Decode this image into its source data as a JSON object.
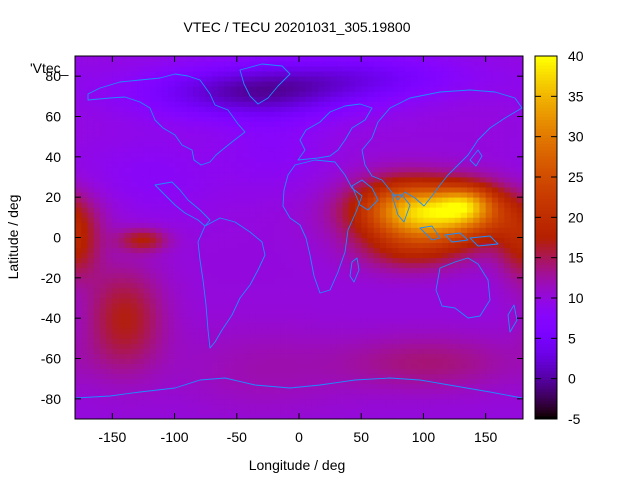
{
  "chart_data": {
    "type": "heatmap",
    "title": "VTEC / TECU 20201031_305.19800",
    "xlabel": "Longitude / deg",
    "ylabel": "Latitude / deg",
    "key_label": "'Vtec_",
    "xlim": [
      -180,
      180
    ],
    "ylim": [
      -90,
      90
    ],
    "xticks": [
      -150,
      -100,
      -50,
      0,
      50,
      100,
      150
    ],
    "yticks": [
      -80,
      -60,
      -40,
      -20,
      0,
      20,
      40,
      60,
      80
    ],
    "colorbar": {
      "min": -5,
      "max": 40,
      "ticks": [
        -5,
        0,
        5,
        10,
        15,
        20,
        25,
        30,
        35,
        40
      ]
    },
    "field": {
      "base": 10,
      "components": [
        {
          "lon": 110,
          "lat": 12,
          "amp": 26,
          "sx": 40,
          "sy": 10
        },
        {
          "lon": 135,
          "lat": 17,
          "amp": 9,
          "sx": 15,
          "sy": 6
        },
        {
          "lon": 80,
          "lat": 18,
          "amp": 5,
          "sx": 25,
          "sy": 10
        },
        {
          "lon": 90,
          "lat": -6,
          "amp": 6,
          "sx": 30,
          "sy": 8
        },
        {
          "lon": -180,
          "lat": -4,
          "amp": 7,
          "sx": 14,
          "sy": 12
        },
        {
          "lon": -125,
          "lat": -1,
          "amp": 7,
          "sx": 14,
          "sy": 4
        },
        {
          "lon": -140,
          "lat": -40,
          "amp": 7,
          "sx": 22,
          "sy": 18
        },
        {
          "lon": 105,
          "lat": -62,
          "amp": 4,
          "sx": 50,
          "sy": 10
        },
        {
          "lon": -30,
          "lat": -65,
          "amp": 2,
          "sx": 50,
          "sy": 15
        },
        {
          "lon": -40,
          "lat": 72,
          "amp": -9,
          "sx": 60,
          "sy": 9
        },
        {
          "lon": 50,
          "lat": 80,
          "amp": -5,
          "sx": 60,
          "sy": 8
        },
        {
          "lon": -120,
          "lat": 30,
          "amp": -2,
          "sx": 40,
          "sy": 15
        },
        {
          "lon": -20,
          "lat": 45,
          "amp": -2,
          "sx": 30,
          "sy": 15
        }
      ]
    }
  }
}
